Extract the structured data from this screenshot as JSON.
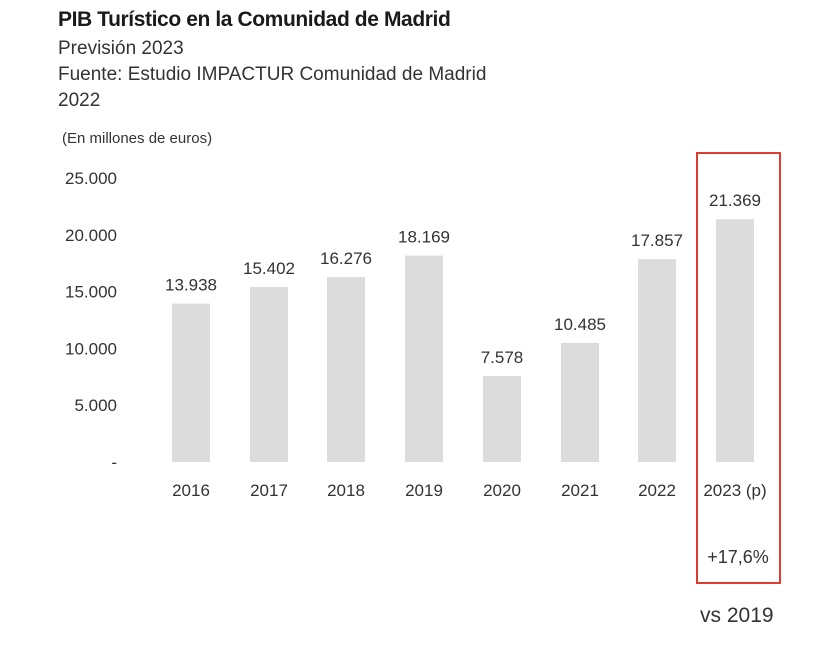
{
  "chart_data": {
    "type": "bar",
    "title": "PIB Turístico en la Comunidad de Madrid",
    "subtitle_lines": [
      "Previsión 2023",
      "Fuente: Estudio IMPACTUR Comunidad de Madrid",
      "2022"
    ],
    "units_note": "(En millones de euros)",
    "categories": [
      "2016",
      "2017",
      "2018",
      "2019",
      "2020",
      "2021",
      "2022",
      "2023 (p)"
    ],
    "values": [
      13938,
      15402,
      16276,
      18169,
      7578,
      10485,
      17857,
      21369
    ],
    "value_labels": [
      "13.938",
      "15.402",
      "16.276",
      "18.169",
      "7.578",
      "10.485",
      "17.857",
      "21.369"
    ],
    "y_ticks": [
      0,
      5000,
      10000,
      15000,
      20000,
      25000
    ],
    "y_tick_labels": [
      "-",
      "5.000",
      "10.000",
      "15.000",
      "20.000",
      "25.000"
    ],
    "ylim": [
      0,
      25000
    ],
    "grid": false,
    "bar_color": "#dcdcdc",
    "highlight": {
      "category": "2023 (p)",
      "border_color": "#e03c31",
      "change_label": "+17,6%",
      "comparison_label": "vs 2019"
    }
  }
}
